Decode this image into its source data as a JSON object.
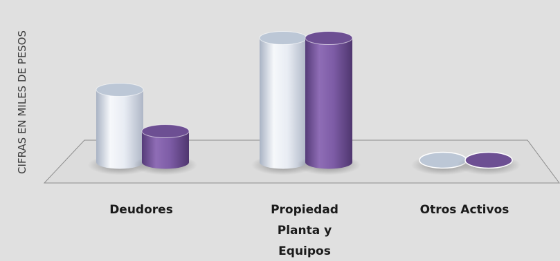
{
  "chart_data": {
    "type": "bar",
    "style": "3d-cylinder",
    "title": "",
    "xlabel": "",
    "ylabel": "CIFRAS EN MILES DE PESOS",
    "categories": [
      [
        "Deudores"
      ],
      [
        "Propiedad",
        "Planta y",
        "Equipos"
      ],
      [
        "Otros Activos"
      ]
    ],
    "series": [
      {
        "color": "#e6ebf3",
        "values": [
          105,
          180,
          0
        ]
      },
      {
        "color": "#7b5aa0",
        "values": [
          45,
          180,
          0
        ]
      }
    ],
    "ylim": [
      0,
      200
    ],
    "grid": false,
    "legend": "none",
    "background": "#e0e0e0"
  }
}
